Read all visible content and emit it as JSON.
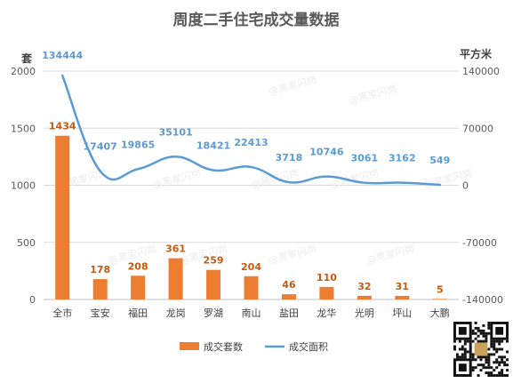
{
  "chart_data": {
    "type": "bar",
    "title": "周度二手住宅成交量数据",
    "categories": [
      "全市",
      "宝安",
      "福田",
      "龙岗",
      "罗湖",
      "南山",
      "盐田",
      "龙华",
      "光明",
      "坪山",
      "大鹏"
    ],
    "series": [
      {
        "name": "成交套数",
        "type": "bar",
        "axis": "left",
        "color": "#ED7D31",
        "label_color": "#C55A11",
        "values": [
          1434,
          178,
          208,
          361,
          259,
          204,
          46,
          110,
          32,
          31,
          5
        ]
      },
      {
        "name": "成交面积",
        "type": "line",
        "axis": "right",
        "color": "#5B9BD5",
        "label_color": "#5B9BD5",
        "values": [
          134444,
          17407,
          19865,
          35101,
          18421,
          22413,
          3718,
          10746,
          3061,
          3162,
          549
        ]
      }
    ],
    "y_left": {
      "label": "套",
      "ylim": [
        0,
        2000
      ],
      "ticks": [
        "0",
        "500",
        "1000",
        "1500",
        "2000"
      ]
    },
    "y_right": {
      "label": "平方米",
      "ylim": [
        -140000,
        140000
      ],
      "ticks": [
        "-140000",
        "-70000",
        "0",
        "70000",
        "140000"
      ]
    },
    "grid": true,
    "legend_position": "bottom"
  },
  "watermark": "@黑家闪岗"
}
